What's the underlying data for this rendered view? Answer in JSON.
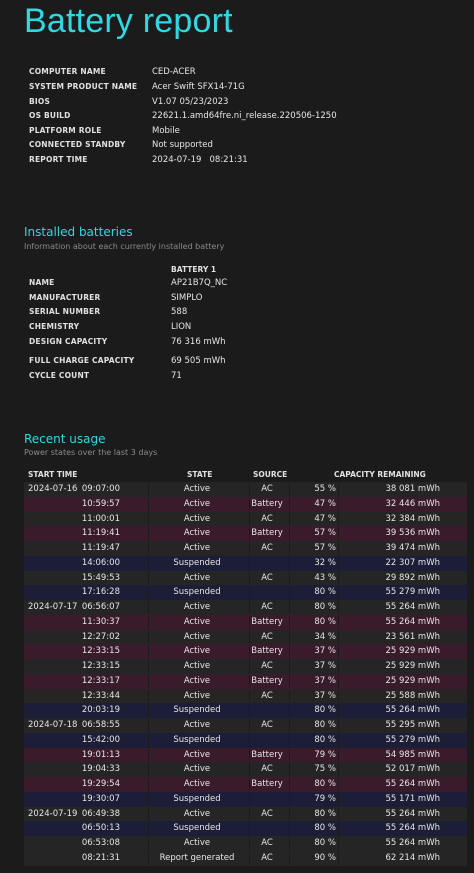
{
  "title": "Battery report",
  "system": [
    {
      "key": "COMPUTER NAME",
      "value": "CED-ACER"
    },
    {
      "key": "SYSTEM PRODUCT NAME",
      "value": "Acer Swift SFX14-71G"
    },
    {
      "key": "BIOS",
      "value": "V1.07 05/23/2023"
    },
    {
      "key": "OS BUILD",
      "value": "22621.1.amd64fre.ni_release.220506-1250"
    },
    {
      "key": "PLATFORM ROLE",
      "value": "Mobile"
    },
    {
      "key": "CONNECTED STANDBY",
      "value": "Not supported"
    },
    {
      "key": "REPORT TIME",
      "value": "2024-07-19   08:21:31"
    }
  ],
  "installed": {
    "title": "Installed batteries",
    "subtitle": "Information about each currently installed battery",
    "column": "BATTERY 1",
    "rows": [
      {
        "key": "NAME",
        "value": "AP21B7Q_NC"
      },
      {
        "key": "MANUFACTURER",
        "value": "SIMPLO"
      },
      {
        "key": "SERIAL NUMBER",
        "value": "588"
      },
      {
        "key": "CHEMISTRY",
        "value": "LION"
      },
      {
        "key": "DESIGN CAPACITY",
        "value": "76 316 mWh"
      },
      {
        "key": "FULL CHARGE CAPACITY",
        "value": "69 505 mWh"
      },
      {
        "key": "CYCLE COUNT",
        "value": "71"
      }
    ]
  },
  "recent": {
    "title": "Recent usage",
    "subtitle": "Power states over the last 3 days",
    "headers": {
      "start": "START TIME",
      "state": "STATE",
      "source": "SOURCE",
      "capacity": "CAPACITY REMAINING"
    },
    "rows": [
      {
        "date": "2024-07-16",
        "time": "09:07:00",
        "state": "Active",
        "source": "AC",
        "pct": "55 %",
        "mwh": "38 081 mWh"
      },
      {
        "date": "",
        "time": "10:59:57",
        "state": "Active",
        "source": "Battery",
        "pct": "47 %",
        "mwh": "32 446 mWh"
      },
      {
        "date": "",
        "time": "11:00:01",
        "state": "Active",
        "source": "AC",
        "pct": "47 %",
        "mwh": "32 384 mWh"
      },
      {
        "date": "",
        "time": "11:19:41",
        "state": "Active",
        "source": "Battery",
        "pct": "57 %",
        "mwh": "39 536 mWh"
      },
      {
        "date": "",
        "time": "11:19:47",
        "state": "Active",
        "source": "AC",
        "pct": "57 %",
        "mwh": "39 474 mWh"
      },
      {
        "date": "",
        "time": "14:06:00",
        "state": "Suspended",
        "source": "",
        "pct": "32 %",
        "mwh": "22 307 mWh"
      },
      {
        "date": "",
        "time": "15:49:53",
        "state": "Active",
        "source": "AC",
        "pct": "43 %",
        "mwh": "29 892 mWh"
      },
      {
        "date": "",
        "time": "17:16:28",
        "state": "Suspended",
        "source": "",
        "pct": "80 %",
        "mwh": "55 279 mWh"
      },
      {
        "date": "2024-07-17",
        "time": "06:56:07",
        "state": "Active",
        "source": "AC",
        "pct": "80 %",
        "mwh": "55 264 mWh"
      },
      {
        "date": "",
        "time": "11:30:37",
        "state": "Active",
        "source": "Battery",
        "pct": "80 %",
        "mwh": "55 264 mWh"
      },
      {
        "date": "",
        "time": "12:27:02",
        "state": "Active",
        "source": "AC",
        "pct": "34 %",
        "mwh": "23 561 mWh"
      },
      {
        "date": "",
        "time": "12:33:15",
        "state": "Active",
        "source": "Battery",
        "pct": "37 %",
        "mwh": "25 929 mWh"
      },
      {
        "date": "",
        "time": "12:33:15",
        "state": "Active",
        "source": "AC",
        "pct": "37 %",
        "mwh": "25 929 mWh"
      },
      {
        "date": "",
        "time": "12:33:17",
        "state": "Active",
        "source": "Battery",
        "pct": "37 %",
        "mwh": "25 929 mWh"
      },
      {
        "date": "",
        "time": "12:33:44",
        "state": "Active",
        "source": "AC",
        "pct": "37 %",
        "mwh": "25 588 mWh"
      },
      {
        "date": "",
        "time": "20:03:19",
        "state": "Suspended",
        "source": "",
        "pct": "80 %",
        "mwh": "55 264 mWh"
      },
      {
        "date": "2024-07-18",
        "time": "06:58:55",
        "state": "Active",
        "source": "AC",
        "pct": "80 %",
        "mwh": "55 295 mWh"
      },
      {
        "date": "",
        "time": "15:42:00",
        "state": "Suspended",
        "source": "",
        "pct": "80 %",
        "mwh": "55 279 mWh"
      },
      {
        "date": "",
        "time": "19:01:13",
        "state": "Active",
        "source": "Battery",
        "pct": "79 %",
        "mwh": "54 985 mWh"
      },
      {
        "date": "",
        "time": "19:04:33",
        "state": "Active",
        "source": "AC",
        "pct": "75 %",
        "mwh": "52 017 mWh"
      },
      {
        "date": "",
        "time": "19:29:54",
        "state": "Active",
        "source": "Battery",
        "pct": "80 %",
        "mwh": "55 264 mWh"
      },
      {
        "date": "",
        "time": "19:30:07",
        "state": "Suspended",
        "source": "",
        "pct": "79 %",
        "mwh": "55 171 mWh"
      },
      {
        "date": "2024-07-19",
        "time": "06:49:38",
        "state": "Active",
        "source": "AC",
        "pct": "80 %",
        "mwh": "55 264 mWh"
      },
      {
        "date": "",
        "time": "06:50:13",
        "state": "Suspended",
        "source": "",
        "pct": "80 %",
        "mwh": "55 264 mWh"
      },
      {
        "date": "",
        "time": "06:53:08",
        "state": "Active",
        "source": "AC",
        "pct": "80 %",
        "mwh": "55 264 mWh"
      },
      {
        "date": "",
        "time": "08:21:31",
        "state": "Report generated",
        "source": "AC",
        "pct": "90 %",
        "mwh": "62 214 mWh"
      }
    ]
  }
}
